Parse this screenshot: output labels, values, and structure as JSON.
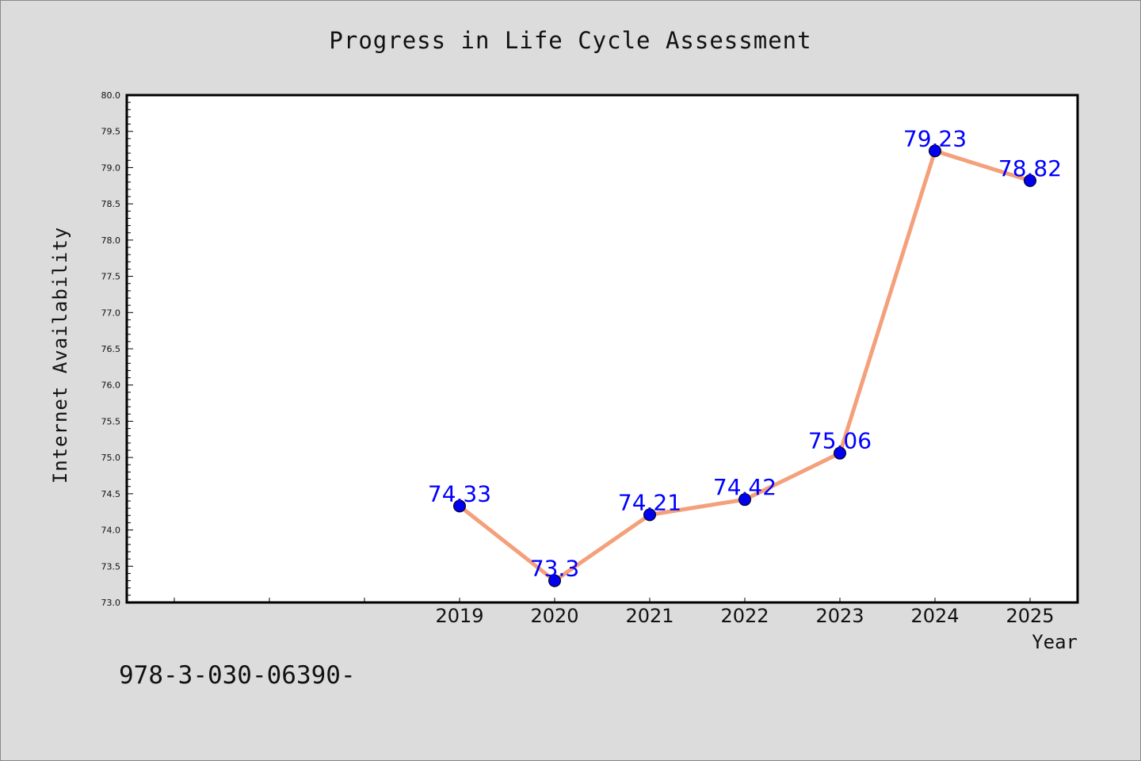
{
  "chart_data": {
    "type": "line",
    "title": "Progress in Life Cycle Assessment",
    "xlabel": "Year",
    "ylabel": "Internet Availability",
    "x": [
      "2019",
      "2020",
      "2021",
      "2022",
      "2023",
      "2024",
      "2025"
    ],
    "series": [
      {
        "values": [
          74.33,
          73.3,
          74.21,
          74.42,
          75.06,
          79.23,
          78.82
        ],
        "labels": [
          "74.33",
          "73.3",
          "74.21",
          "74.42",
          "75.06",
          "79.23",
          "78.82"
        ],
        "line_color": "#f4a07a",
        "marker_color": "#0000ee"
      }
    ],
    "ylim": [
      73.0,
      80.0
    ],
    "yticks": [
      "73.0",
      "73.5",
      "74.0",
      "74.5",
      "75.0",
      "75.5",
      "76.0",
      "76.5",
      "77.0",
      "77.5",
      "78.0",
      "78.5",
      "79.0",
      "79.5",
      "80.0"
    ],
    "grid": false,
    "label_color": "#0000ff",
    "plot_background": "#ffffff",
    "figure_background": "#dcdcdc"
  },
  "footnote": "978-3-030-06390-"
}
